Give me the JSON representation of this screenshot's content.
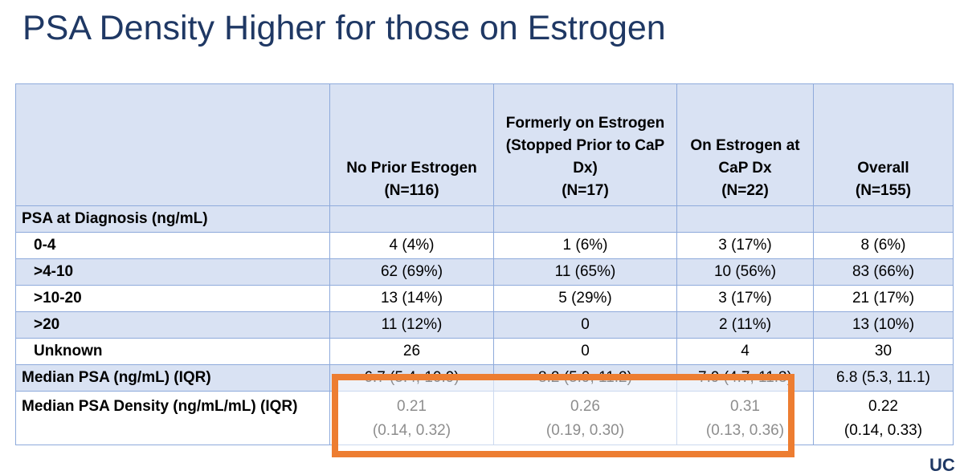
{
  "title": "PSA Density Higher for those on Estrogen",
  "table": {
    "header": [
      "",
      "No Prior Estrogen\n(N=116)",
      "Formerly on Estrogen\n(Stopped Prior to CaP\nDx)\n(N=17)",
      "On Estrogen at\nCaP Dx\n(N=22)",
      "Overall\n(N=155)"
    ],
    "rows": [
      {
        "label": "PSA at Diagnosis (ng/mL)",
        "cells": [
          "",
          "",
          "",
          ""
        ]
      },
      {
        "label": "0-4",
        "cells": [
          "4 (4%)",
          "1 (6%)",
          "3 (17%)",
          "8 (6%)"
        ]
      },
      {
        "label": ">4-10",
        "cells": [
          "62 (69%)",
          "11 (65%)",
          "10 (56%)",
          "83 (66%)"
        ]
      },
      {
        "label": ">10-20",
        "cells": [
          "13 (14%)",
          "5 (29%)",
          "3 (17%)",
          "21 (17%)"
        ]
      },
      {
        "label": ">20",
        "cells": [
          "11 (12%)",
          "0",
          "2 (11%)",
          "13 (10%)"
        ]
      },
      {
        "label": "Unknown",
        "cells": [
          "26",
          "0",
          "4",
          "30"
        ]
      },
      {
        "label": "Median PSA (ng/mL) (IQR)",
        "cells": [
          "6.7 (5.4, 10.9)",
          "8.2 (5.9, 11.2)",
          "7.9 (4.7, 11.3)",
          "6.8 (5.3, 11.1)"
        ]
      },
      {
        "label": "Median PSA Density (ng/mL/mL) (IQR)",
        "cells": [
          "0.21\n(0.14, 0.32)",
          "0.26\n(0.19, 0.30)",
          "0.31\n(0.13, 0.36)",
          "0.22\n(0.14, 0.33)"
        ]
      }
    ]
  },
  "logo_text": "UC",
  "colors": {
    "title": "#1f3864",
    "row_shade": "#d9e2f3",
    "border": "#8eaadb",
    "highlight": "#ed7d31"
  }
}
